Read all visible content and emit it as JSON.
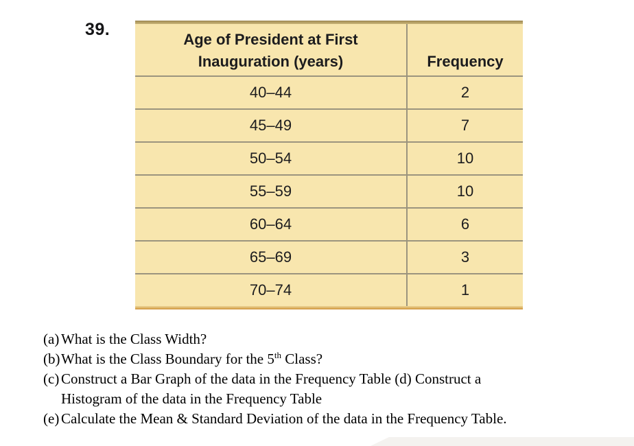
{
  "problem_number": "39.",
  "table": {
    "header": {
      "col1_line1": "Age of President at First",
      "col1_line2": "Inauguration (years)",
      "col2": "Frequency"
    },
    "rows": [
      {
        "range": "40–44",
        "frequency": "2"
      },
      {
        "range": "45–49",
        "frequency": "7"
      },
      {
        "range": "50–54",
        "frequency": "10"
      },
      {
        "range": "55–59",
        "frequency": "10"
      },
      {
        "range": "60–64",
        "frequency": "6"
      },
      {
        "range": "65–69",
        "frequency": "3"
      },
      {
        "range": "70–74",
        "frequency": "1"
      }
    ]
  },
  "questions": {
    "a": {
      "marker": "(a)",
      "text": "What is the Class Width?"
    },
    "b": {
      "marker": "(b)",
      "pre": "What is the Class Boundary for the 5",
      "sup": "th",
      "post": " Class?"
    },
    "c": {
      "marker": "(c)",
      "line1": "Construct a Bar Graph of the data in the Frequency Table (d) Construct a",
      "line2": "Histogram of the data in the Frequency Table"
    },
    "e": {
      "marker": "(e)",
      "text": "Calculate the Mean & Standard Deviation of the data in the Frequency Table."
    }
  },
  "colors": {
    "table_background": "#f8e6ae",
    "table_border_top": "#9e8750",
    "table_border_bottom": "#d0953a",
    "gridline": "#9b947e",
    "text": "#1c1c1e"
  }
}
